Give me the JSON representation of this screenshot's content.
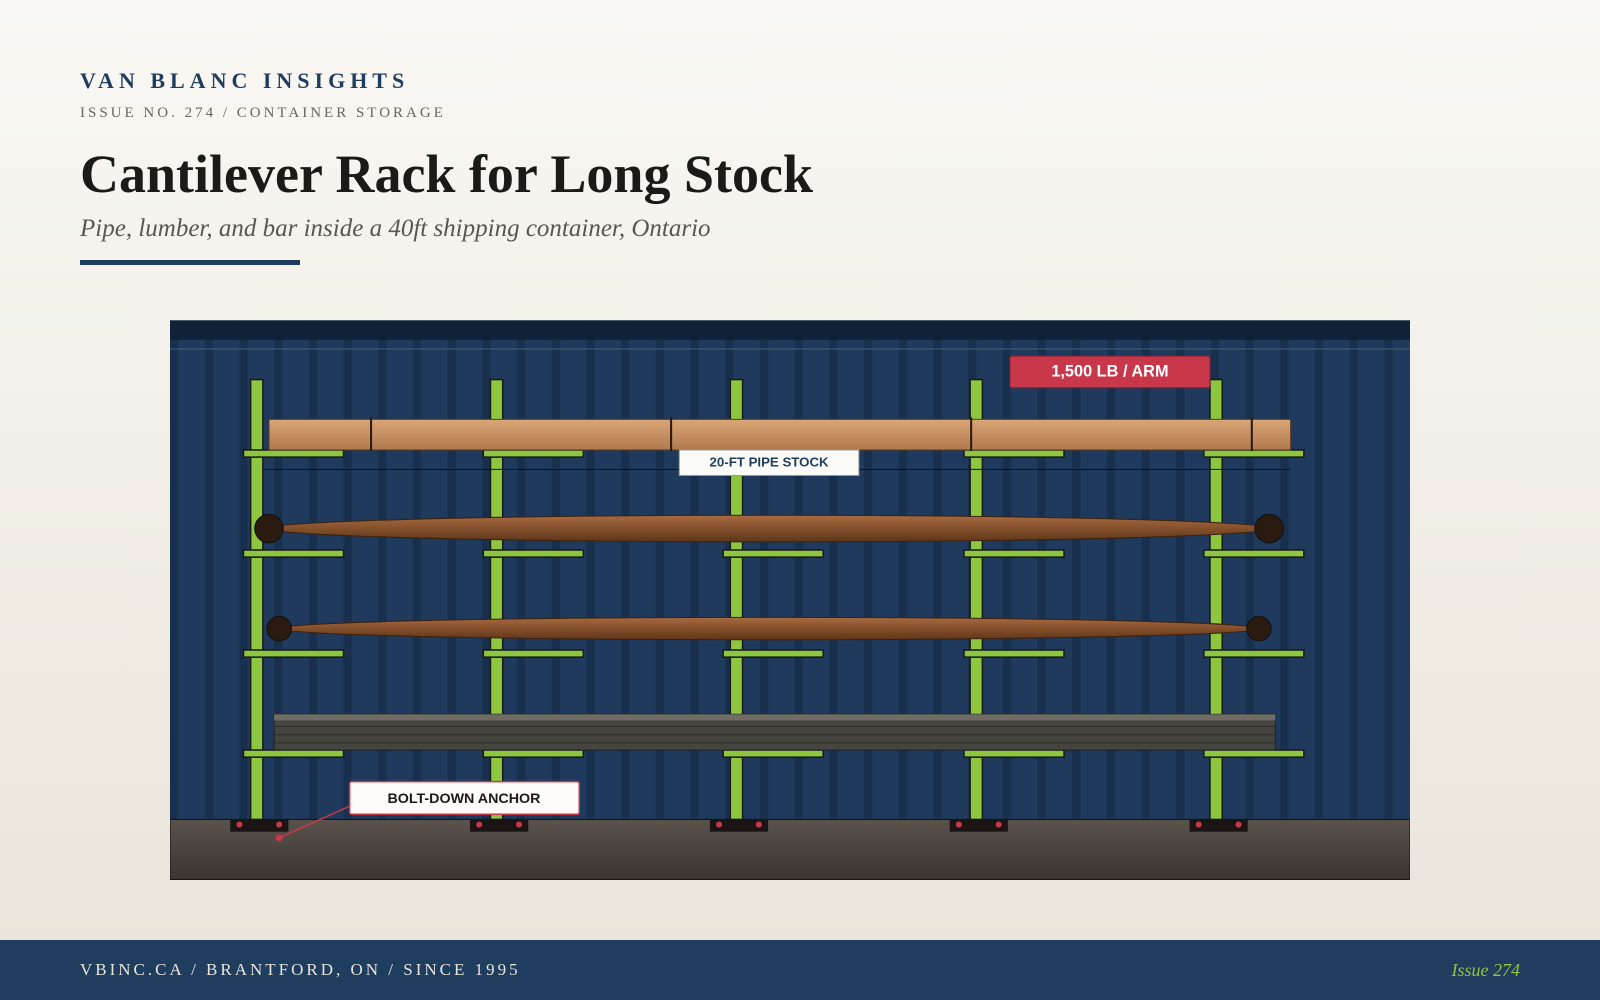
{
  "header": {
    "brand": "VAN BLANC INSIGHTS",
    "issue": "ISSUE NO. 274 / CONTAINER STORAGE",
    "title": "Cantilever Rack for Long Stock",
    "subtitle": "Pipe, lumber, and bar inside a 40ft shipping container, Ontario"
  },
  "illustration": {
    "labels": {
      "load": "1,500 LB / ARM",
      "pipe": "20-FT PIPE STOCK",
      "anchor": "BOLT-DOWN ANCHOR"
    }
  },
  "footer": {
    "left": "VBINC.CA / BRANTFORD, ON / SINCE 1995",
    "right": "Issue 274"
  }
}
